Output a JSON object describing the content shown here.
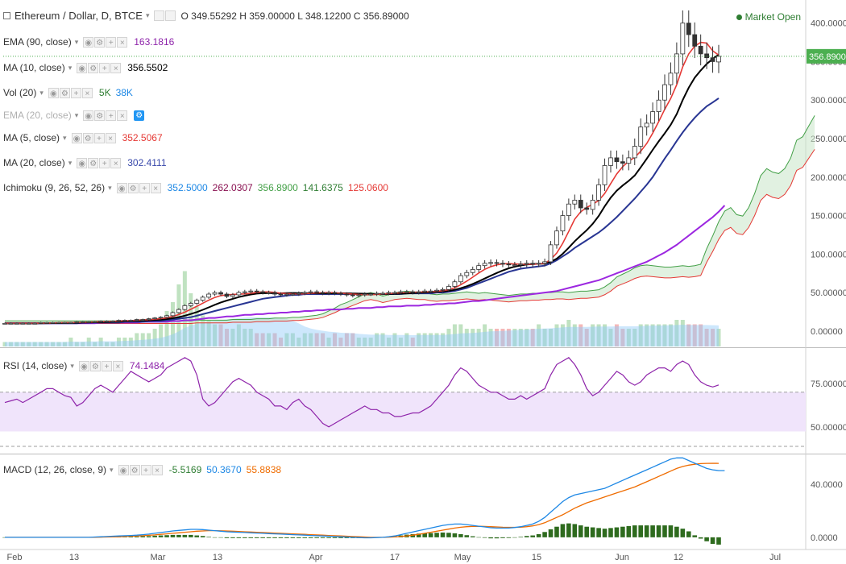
{
  "header": {
    "symbol": "Ethereum / Dollar, D, BTCE",
    "ohlc": "O 349.55292 H 359.00000 L 348.12200 C 356.89000",
    "market_status": "Market Open"
  },
  "indicators": [
    {
      "name": "EMA (90, close)",
      "values": [
        {
          "text": "163.1816",
          "color": "#8e24aa"
        }
      ]
    },
    {
      "name": "MA (10, close)",
      "values": [
        {
          "text": "356.5502",
          "color": "#000000"
        }
      ]
    },
    {
      "name": "Vol (20)",
      "values": [
        {
          "text": "5K",
          "color": "#2e7d32"
        },
        {
          "text": "38K",
          "color": "#1e88e5"
        }
      ]
    },
    {
      "name": "EMA (20, close)",
      "values": [],
      "faded": true
    },
    {
      "name": "MA (5, close)",
      "values": [
        {
          "text": "352.5067",
          "color": "#e53935"
        }
      ]
    },
    {
      "name": "MA (20, close)",
      "values": [
        {
          "text": "302.4111",
          "color": "#3949ab"
        }
      ]
    },
    {
      "name": "Ichimoku (9, 26, 52, 26)",
      "values": [
        {
          "text": "352.5000",
          "color": "#1e88e5"
        },
        {
          "text": "262.0307",
          "color": "#880e4f"
        },
        {
          "text": "356.8900",
          "color": "#43a047"
        },
        {
          "text": "141.6375",
          "color": "#2e7d32"
        },
        {
          "text": "125.0600",
          "color": "#e53935"
        }
      ]
    }
  ],
  "rsi_legend": {
    "name": "RSI (14, close)",
    "value": "74.1484",
    "color": "#8e24aa"
  },
  "macd_legend": {
    "name": "MACD (12, 26, close, 9)",
    "values": [
      {
        "text": "-5.5169",
        "color": "#2e7d32"
      },
      {
        "text": "50.3670",
        "color": "#1e88e5"
      },
      {
        "text": "55.8838",
        "color": "#ef6c00"
      }
    ]
  },
  "colors": {
    "up": "#26a69a",
    "down": "#ef5350",
    "ma5": "#e53935",
    "ma10": "#000000",
    "ma20": "#283593",
    "ema90": "#9c27e0",
    "senkou_a": "#43a047",
    "senkou_b": "#e53935",
    "cloud": "#c8e6c9",
    "rsi": "#8e24aa",
    "rsi_band": "#f0e4fb",
    "macd": "#1e88e5",
    "signal": "#ef6c00",
    "hist": "#2e6b1e",
    "last_price_bg": "#4caf50"
  },
  "chart_data": [
    {
      "type": "candlestick",
      "title": "Ethereum / Dollar, D, BTCE",
      "ylim": [
        -20,
        430
      ],
      "y_ticks": [
        "400.00000",
        "350.00000",
        "300.00000",
        "250.00000",
        "200.00000",
        "150.00000",
        "100.00000",
        "50.00000",
        "0.00000"
      ],
      "x_ticks": [
        "Feb",
        "13",
        "Mar",
        "13",
        "Apr",
        "17",
        "May",
        "15",
        "Jun",
        "12",
        "Jul"
      ],
      "last_price": "356.89000",
      "close": [
        10,
        10,
        10,
        10,
        10,
        10,
        11,
        11,
        11,
        11,
        11,
        11,
        12,
        12,
        12,
        12,
        13,
        13,
        13,
        14,
        14,
        14,
        15,
        15,
        16,
        17,
        18,
        20,
        24,
        28,
        33,
        36,
        40,
        44,
        48,
        50,
        48,
        45,
        47,
        50,
        51,
        52,
        51,
        50,
        50,
        48,
        47,
        48,
        48,
        49,
        50,
        51,
        50,
        49,
        50,
        49,
        48,
        47,
        46,
        47,
        48,
        48,
        49,
        49,
        50,
        50,
        51,
        51,
        50,
        51,
        52,
        52,
        53,
        54,
        58,
        64,
        72,
        76,
        80,
        85,
        88,
        89,
        88,
        87,
        86,
        86,
        87,
        88,
        87,
        88,
        90,
        112,
        130,
        150,
        165,
        170,
        160,
        158,
        170,
        190,
        215,
        225,
        220,
        218,
        225,
        240,
        265,
        270,
        285,
        300,
        320,
        335,
        360,
        400,
        385,
        370,
        360,
        355,
        350,
        356.89
      ],
      "open": [
        10,
        10,
        10,
        10,
        10,
        10,
        10,
        11,
        11,
        11,
        11,
        11,
        11,
        12,
        12,
        12,
        12,
        13,
        13,
        13,
        14,
        14,
        14,
        15,
        15,
        16,
        17,
        18,
        20,
        24,
        28,
        33,
        36,
        40,
        44,
        48,
        50,
        48,
        45,
        47,
        50,
        51,
        52,
        51,
        50,
        50,
        48,
        47,
        48,
        48,
        49,
        50,
        51,
        50,
        49,
        50,
        49,
        48,
        47,
        46,
        47,
        48,
        48,
        49,
        49,
        50,
        50,
        51,
        51,
        50,
        51,
        52,
        52,
        53,
        54,
        58,
        64,
        72,
        76,
        80,
        85,
        88,
        89,
        88,
        87,
        86,
        86,
        87,
        88,
        87,
        88,
        90,
        112,
        130,
        150,
        165,
        170,
        160,
        158,
        170,
        190,
        215,
        225,
        220,
        218,
        225,
        240,
        265,
        270,
        285,
        300,
        320,
        335,
        360,
        400,
        385,
        370,
        360,
        355,
        349.55
      ],
      "volume": [
        1,
        1,
        1,
        1,
        1,
        1,
        1,
        1,
        1,
        1,
        1,
        2,
        1,
        1,
        2,
        1,
        2,
        1,
        1,
        2,
        2,
        2,
        3,
        3,
        3,
        4,
        5,
        8,
        10,
        14,
        17,
        12,
        9,
        7,
        6,
        5,
        5,
        4,
        4,
        5,
        4,
        4,
        3,
        3,
        3,
        3,
        2,
        3,
        3,
        2,
        3,
        3,
        3,
        3,
        2,
        3,
        2,
        3,
        3,
        2,
        2,
        2,
        3,
        3,
        2,
        3,
        2,
        3,
        2,
        3,
        3,
        3,
        3,
        3,
        4,
        5,
        5,
        4,
        4,
        4,
        5,
        4,
        4,
        4,
        4,
        4,
        4,
        4,
        4,
        5,
        4,
        4,
        5,
        5,
        6,
        5,
        5,
        4,
        5,
        5,
        5,
        4,
        5,
        4,
        4,
        4,
        5,
        5,
        5,
        5,
        5,
        5,
        6,
        6,
        5,
        5,
        5,
        4,
        4,
        4
      ],
      "series": [
        {
          "name": "EMA (90, close)",
          "values": [
            10,
            10,
            10,
            10,
            10,
            10,
            10,
            10,
            10,
            10,
            10,
            10,
            10,
            10,
            10,
            10,
            11,
            11,
            11,
            11,
            11,
            11,
            11,
            12,
            12,
            12,
            12,
            12,
            13,
            13,
            14,
            14,
            15,
            16,
            17,
            17,
            18,
            19,
            19,
            20,
            21,
            21,
            22,
            22,
            23,
            23,
            24,
            24,
            25,
            25,
            26,
            26,
            27,
            27,
            28,
            28,
            28,
            29,
            29,
            30,
            30,
            30,
            31,
            31,
            32,
            32,
            32,
            33,
            33,
            33,
            34,
            34,
            35,
            35,
            36,
            36,
            37,
            38,
            39,
            39,
            40,
            41,
            42,
            43,
            44,
            45,
            46,
            47,
            48,
            49,
            50,
            51,
            52,
            54,
            56,
            58,
            60,
            62,
            64,
            66,
            69,
            72,
            75,
            78,
            81,
            84,
            87,
            90,
            94,
            98,
            102,
            107,
            112,
            118,
            124,
            130,
            136,
            142,
            148,
            155,
            163.18
          ]
        },
        {
          "name": "MA (20, close)",
          "values": [
            10,
            10,
            10,
            10,
            10,
            10,
            10,
            10,
            10,
            10,
            10,
            10,
            10,
            11,
            11,
            11,
            11,
            11,
            11,
            11,
            12,
            12,
            12,
            12,
            13,
            13,
            13,
            14,
            15,
            16,
            17,
            18,
            20,
            22,
            24,
            26,
            28,
            30,
            32,
            34,
            36,
            38,
            40,
            42,
            43,
            44,
            45,
            46,
            47,
            47,
            48,
            48,
            48,
            48,
            48,
            48,
            48,
            48,
            48,
            48,
            48,
            48,
            48,
            48,
            48,
            48,
            48,
            49,
            49,
            49,
            49,
            49,
            50,
            50,
            51,
            52,
            54,
            56,
            59,
            62,
            65,
            68,
            71,
            74,
            77,
            79,
            81,
            82,
            83,
            84,
            85,
            88,
            92,
            97,
            102,
            108,
            113,
            118,
            123,
            128,
            134,
            141,
            148,
            156,
            164,
            172,
            181,
            190,
            200,
            212,
            224,
            235,
            247,
            258,
            268,
            277,
            285,
            292,
            297,
            302.41
          ]
        }
      ]
    },
    {
      "type": "line",
      "title": "RSI (14, close)",
      "ylim": [
        35,
        95
      ],
      "y_ticks": [
        "75.00000",
        "50.00000"
      ],
      "series": [
        {
          "name": "RSI (14, close)",
          "values": [
            64,
            65,
            66,
            64,
            66,
            68,
            70,
            72,
            72,
            70,
            68,
            67,
            62,
            64,
            68,
            72,
            74,
            72,
            70,
            74,
            78,
            82,
            80,
            78,
            76,
            78,
            80,
            84,
            86,
            88,
            90,
            88,
            80,
            66,
            62,
            64,
            68,
            72,
            76,
            78,
            76,
            74,
            70,
            68,
            66,
            62,
            62,
            60,
            64,
            66,
            62,
            60,
            56,
            52,
            50,
            52,
            54,
            56,
            58,
            60,
            62,
            60,
            60,
            58,
            58,
            56,
            56,
            57,
            58,
            58,
            60,
            62,
            66,
            70,
            74,
            80,
            84,
            82,
            78,
            74,
            72,
            70,
            70,
            68,
            66,
            66,
            68,
            66,
            68,
            70,
            72,
            80,
            86,
            88,
            90,
            86,
            80,
            72,
            68,
            70,
            74,
            78,
            82,
            80,
            76,
            74,
            76,
            80,
            82,
            84,
            84,
            82,
            86,
            88,
            86,
            80,
            76,
            74,
            73,
            74.15
          ]
        }
      ]
    },
    {
      "type": "line",
      "title": "MACD (12, 26, close, 9)",
      "ylim": [
        -8,
        62
      ],
      "y_ticks": [
        "40.0000",
        "0.0000"
      ],
      "series": [
        {
          "name": "MACD",
          "values": [
            0,
            0,
            0,
            0,
            0,
            0,
            0,
            0,
            0,
            0,
            0,
            0,
            0,
            0,
            0,
            0.2,
            0.4,
            0.6,
            0.8,
            1,
            1.2,
            1.4,
            1.6,
            2,
            2.4,
            3,
            3.6,
            4.2,
            4.8,
            5.2,
            5.6,
            6,
            6,
            5.8,
            5.4,
            5,
            4.6,
            4.2,
            4,
            3.8,
            3.6,
            3.4,
            3.2,
            3,
            2.8,
            2.6,
            2.4,
            2.2,
            2,
            1.8,
            1.6,
            1.4,
            1.2,
            1,
            0.8,
            0.6,
            0.4,
            0.2,
            0,
            -0.2,
            -0.4,
            -0.4,
            -0.2,
            0,
            0.4,
            1,
            2,
            3,
            4,
            5,
            6,
            7,
            8,
            9,
            9.6,
            10,
            10,
            9.6,
            9,
            8.4,
            7.8,
            7.2,
            7,
            7,
            7,
            7.4,
            8,
            9,
            10,
            12,
            15,
            19,
            23,
            27,
            30,
            32,
            33,
            34,
            35,
            36,
            37,
            39,
            41,
            43,
            45,
            47,
            49,
            51,
            53,
            55,
            57,
            59,
            60,
            60,
            58,
            56,
            54,
            52,
            51,
            50.37,
            50.37
          ]
        },
        {
          "name": "Signal",
          "values": [
            0,
            0,
            0,
            0,
            0,
            0,
            0,
            0,
            0,
            0,
            0,
            0,
            0,
            0,
            0,
            0,
            0.1,
            0.2,
            0.3,
            0.4,
            0.6,
            0.8,
            1,
            1.2,
            1.5,
            1.8,
            2.2,
            2.6,
            3,
            3.4,
            3.8,
            4.2,
            4.6,
            4.8,
            5,
            5,
            4.9,
            4.8,
            4.6,
            4.4,
            4.2,
            4,
            3.8,
            3.6,
            3.4,
            3.2,
            3,
            2.8,
            2.6,
            2.4,
            2.2,
            2,
            1.8,
            1.6,
            1.4,
            1.2,
            1,
            0.8,
            0.6,
            0.4,
            0.2,
            0,
            0,
            0,
            0.1,
            0.3,
            0.6,
            1,
            1.6,
            2.2,
            3,
            3.8,
            4.6,
            5.4,
            6.2,
            7,
            7.6,
            8,
            8.2,
            8.3,
            8.2,
            8,
            7.8,
            7.6,
            7.5,
            7.5,
            7.6,
            8,
            8.6,
            9.6,
            11,
            13,
            15,
            17,
            19.5,
            22,
            24,
            26,
            27.5,
            29,
            30.5,
            32,
            33.5,
            35,
            36.5,
            38,
            40,
            42,
            44,
            46,
            48,
            50,
            52,
            53.5,
            54.5,
            55.2,
            55.7,
            55.88,
            55.9,
            55.88
          ]
        },
        {
          "name": "Histogram",
          "values": [
            0,
            0,
            0,
            0,
            0,
            0,
            0,
            0,
            0,
            0,
            0,
            0,
            0,
            0,
            0,
            0.2,
            0.3,
            0.4,
            0.5,
            0.6,
            0.6,
            0.6,
            0.6,
            0.8,
            0.9,
            1.2,
            1.4,
            1.6,
            1.8,
            1.8,
            1.8,
            1.8,
            1.4,
            1,
            0.4,
            0,
            -0.3,
            -0.6,
            -0.6,
            -0.6,
            -0.6,
            -0.6,
            -0.6,
            -0.6,
            -0.6,
            -0.6,
            -0.6,
            -0.6,
            -0.6,
            -0.6,
            -0.6,
            -0.6,
            -0.6,
            -0.6,
            -0.6,
            -0.6,
            -0.6,
            -0.6,
            -0.6,
            -0.6,
            -0.6,
            -0.4,
            -0.2,
            0,
            0.3,
            0.7,
            1.4,
            2,
            2.4,
            2.8,
            3,
            3.2,
            3.4,
            3.6,
            3.4,
            3,
            2.4,
            1.6,
            0.8,
            0.1,
            -0.4,
            -0.8,
            -0.8,
            -0.6,
            -0.5,
            -0.1,
            0.4,
            1,
            1.4,
            2.4,
            4,
            6,
            8,
            10,
            10.5,
            10,
            9,
            8,
            7.5,
            7,
            6.5,
            7,
            7.5,
            8,
            8.5,
            9,
            9,
            9,
            9,
            9,
            9,
            9,
            8,
            6.5,
            4.5,
            1.5,
            -1,
            -3,
            -5,
            -5.52
          ]
        }
      ]
    }
  ]
}
